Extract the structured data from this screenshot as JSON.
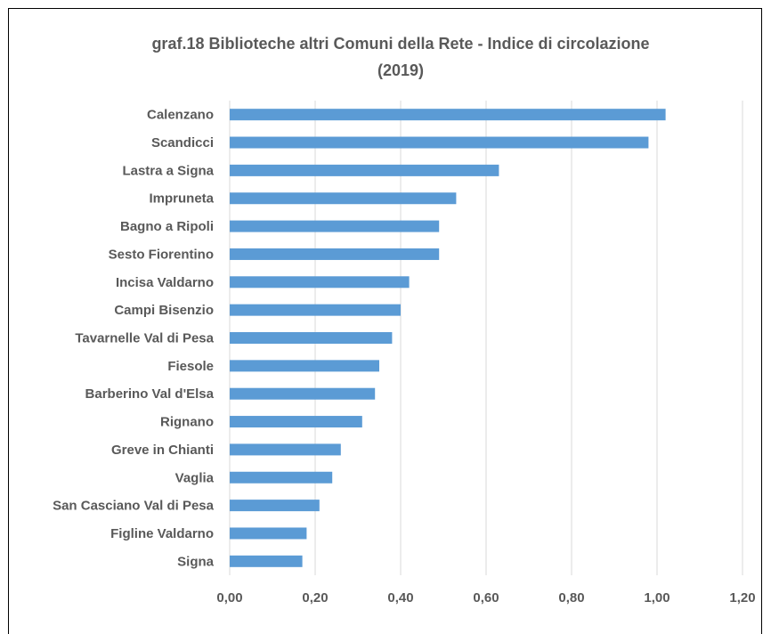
{
  "chart_data": {
    "type": "bar",
    "orientation": "horizontal",
    "title_line1": "graf.18  Biblioteche altri Comuni della Rete - Indice di circolazione",
    "title_line2": "(2019)",
    "categories": [
      "Calenzano",
      "Scandicci",
      "Lastra a Signa",
      "Impruneta",
      "Bagno a Ripoli",
      "Sesto Fiorentino",
      "Incisa Valdarno",
      "Campi Bisenzio",
      "Tavarnelle Val di Pesa",
      "Fiesole",
      "Barberino Val d'Elsa",
      "Rignano",
      "Greve in Chianti",
      "Vaglia",
      "San Casciano Val di Pesa",
      "Figline Valdarno",
      "Signa"
    ],
    "values": [
      1.02,
      0.98,
      0.63,
      0.53,
      0.49,
      0.49,
      0.42,
      0.4,
      0.38,
      0.35,
      0.34,
      0.31,
      0.26,
      0.24,
      0.21,
      0.18,
      0.17
    ],
    "xlim": [
      0,
      1.2
    ],
    "xticks": [
      "0,00",
      "0,20",
      "0,40",
      "0,60",
      "0,80",
      "1,00",
      "1,20"
    ],
    "xtick_values": [
      0,
      0.2,
      0.4,
      0.6,
      0.8,
      1.0,
      1.2
    ],
    "grid": "vertical",
    "legend": "none",
    "colors": {
      "bar": "#5b9bd5",
      "grid": "#d9d9d9",
      "text": "#595959"
    }
  }
}
